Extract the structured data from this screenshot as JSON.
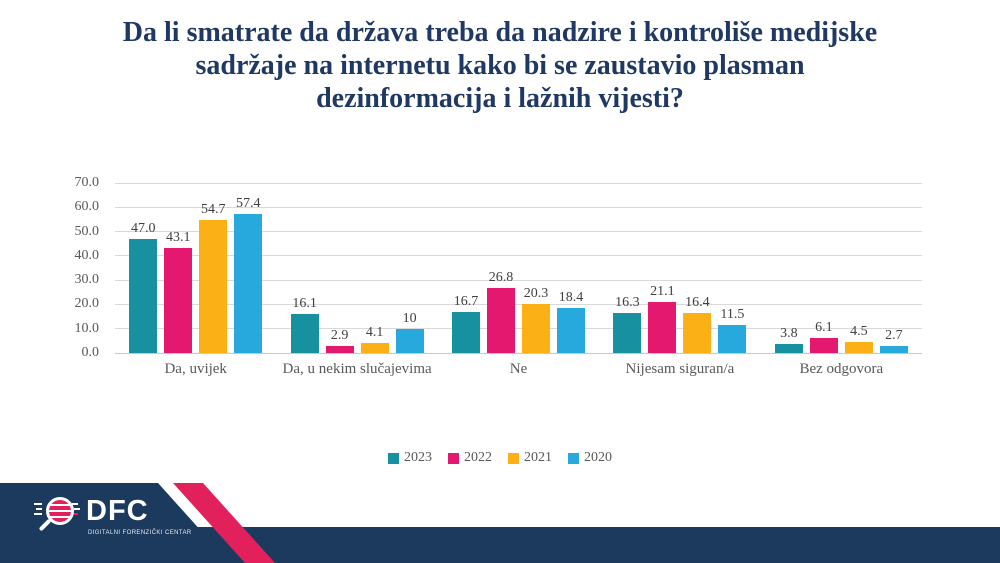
{
  "title": {
    "lines": [
      "Da li smatrate da država treba da nadzire i kontroliše medijske",
      "sadržaje na internetu kako bi se zaustavio plasman",
      "dezinformacija i lažnih vijesti?"
    ],
    "color": "#1F3864"
  },
  "chart_data": {
    "type": "bar",
    "title": "Da li smatrate da država treba da nadzire i kontroliše medijske sadržaje na internetu kako bi se zaustavio plasman dezinformacija i lažnih vijesti?",
    "categories": [
      "Da, uvijek",
      "Da, u nekim slučajevima",
      "Ne",
      "Nijesam siguran/a",
      "Bez odgovora"
    ],
    "series": [
      {
        "name": "2023",
        "color": "#17919F",
        "values": [
          47.0,
          16.1,
          16.7,
          16.3,
          3.8
        ],
        "labels": [
          "47.0",
          "16.1",
          "16.7",
          "16.3",
          "3.8"
        ]
      },
      {
        "name": "2022",
        "color": "#E5186F",
        "values": [
          43.1,
          2.9,
          26.8,
          21.1,
          6.1
        ],
        "labels": [
          "43.1",
          "2.9",
          "26.8",
          "21.1",
          "6.1"
        ]
      },
      {
        "name": "2021",
        "color": "#FBB116",
        "values": [
          54.7,
          4.1,
          20.3,
          16.4,
          4.5
        ],
        "labels": [
          "54.7",
          "4.1",
          "20.3",
          "16.4",
          "4.5"
        ]
      },
      {
        "name": "2020",
        "color": "#28A9DE",
        "values": [
          57.4,
          10,
          18.4,
          11.5,
          2.7
        ],
        "labels": [
          "57.4",
          "10",
          "18.4",
          "11.5",
          "2.7"
        ]
      }
    ],
    "y_axis": {
      "min": 0,
      "max": 70,
      "step": 10,
      "tick_labels": [
        "0.0",
        "10.0",
        "20.0",
        "30.0",
        "40.0",
        "50.0",
        "60.0",
        "70.0"
      ]
    },
    "xlabel": "",
    "ylabel": "",
    "grid": true,
    "gridline_color": "#D9D9D9",
    "legend": [
      "2023",
      "2022",
      "2021",
      "2020"
    ],
    "legend_position": "bottom",
    "label_color": "#404040",
    "axis_text_color": "#595959"
  },
  "footer": {
    "logo": {
      "text": "DFC",
      "subtitle": "DIGITALNI FORENZIČKI CENTAR"
    },
    "colors": {
      "navy": "#1B3A5E",
      "pink": "#E2215C"
    }
  }
}
